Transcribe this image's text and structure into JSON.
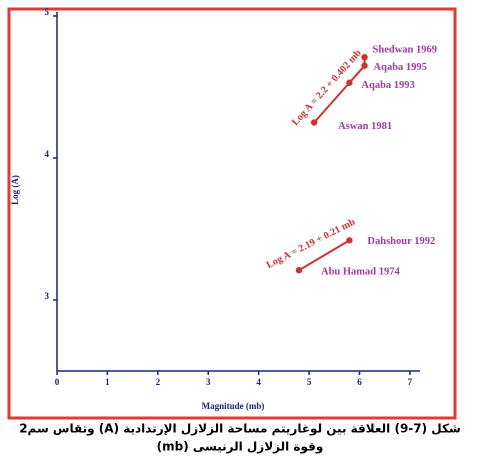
{
  "chart_data": {
    "type": "line",
    "xlabel": "Magnitude (mb)",
    "ylabel": "Log (A)",
    "xlim": [
      0,
      7.2
    ],
    "xticks": [
      0,
      1,
      2,
      3,
      4,
      5,
      6,
      7
    ],
    "ylim": [
      2.5,
      5
    ],
    "yticks": [
      3,
      4,
      5
    ],
    "series": [
      {
        "name": "Log A = 2.2 + 0.402 mb",
        "color": "#d32f2f",
        "x": [
          5.1,
          5.8,
          6.1,
          6.1
        ],
        "values": [
          4.25,
          4.53,
          4.65,
          4.71
        ],
        "labels": [
          "Aswan 1981",
          "Aqaba 1993",
          "Aqaba 1995",
          "Shedwan 1969"
        ]
      },
      {
        "name": "Log A = 2.19 + 0.21 mb",
        "color": "#d32f2f",
        "x": [
          4.8,
          5.8
        ],
        "values": [
          3.21,
          3.42
        ],
        "labels": [
          "Abu Hamad 1974",
          "Dahshour 1992"
        ]
      }
    ],
    "label_color": "#a03ca0",
    "caption": [
      "شكل (7-9) العلاقة بين لوغاريتم مساحة الزلازل الإرتدادية (A) وتقاس سم2",
      "وقوة الزلازل الرنيسى (mb)"
    ]
  }
}
